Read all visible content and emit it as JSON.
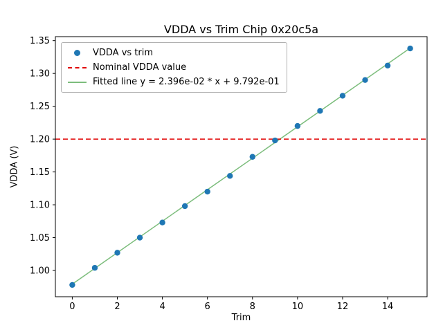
{
  "chart_data": {
    "type": "scatter",
    "title": "VDDA vs Trim Chip 0x20c5a",
    "xlabel": "Trim",
    "ylabel": "VDDA (V)",
    "x": [
      0,
      1,
      2,
      3,
      4,
      5,
      6,
      7,
      8,
      9,
      10,
      11,
      12,
      13,
      14,
      15
    ],
    "series": [
      {
        "name": "VDDA vs trim",
        "type": "scatter",
        "color": "#1f77b4",
        "values": [
          0.978,
          1.004,
          1.027,
          1.05,
          1.073,
          1.098,
          1.12,
          1.144,
          1.173,
          1.198,
          1.22,
          1.243,
          1.266,
          1.29,
          1.312,
          1.338
        ]
      },
      {
        "name": "Nominal VDDA value",
        "type": "hline",
        "color": "#e00000",
        "y": 1.2,
        "linestyle": "dashed"
      },
      {
        "name": "Fitted line y = 2.396e-02 * x + 9.792e-01",
        "type": "line",
        "color": "#7cbd7c",
        "slope": 0.02396,
        "intercept": 0.9792,
        "x_start": 0,
        "x_end": 15
      }
    ],
    "xlim": [
      -0.75,
      15.75
    ],
    "ylim": [
      0.96,
      1.356
    ],
    "xticks": [
      0,
      2,
      4,
      6,
      8,
      10,
      12,
      14
    ],
    "yticks": [
      1.0,
      1.05,
      1.1,
      1.15,
      1.2,
      1.25,
      1.3,
      1.35
    ],
    "legend_position": "upper left",
    "grid": false,
    "axes_color": "#000000",
    "tick_label_fontsize": 13
  }
}
